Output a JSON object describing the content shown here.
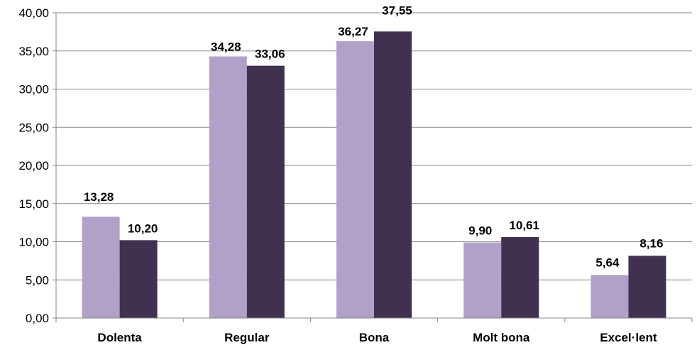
{
  "chart_data": {
    "type": "bar",
    "categories": [
      "Dolenta",
      "Regular",
      "Bona",
      "Molt bona",
      "Excel·lent"
    ],
    "series": [
      {
        "values": [
          13.28,
          34.28,
          36.27,
          9.9,
          5.64
        ],
        "value_labels": [
          "13,28",
          "34,28",
          "36,27",
          "9,90",
          "5,64"
        ],
        "color": "#b1a0c7"
      },
      {
        "values": [
          10.2,
          33.06,
          37.55,
          10.61,
          8.16
        ],
        "value_labels": [
          "10,20",
          "33,06",
          "37,55",
          "10,61",
          "8,16"
        ],
        "color": "#403151"
      }
    ],
    "ylim": [
      0,
      40
    ],
    "yticks": [
      0,
      5,
      10,
      15,
      20,
      25,
      30,
      35,
      40
    ],
    "ytick_labels": [
      "0,00",
      "5,00",
      "10,00",
      "15,00",
      "20,00",
      "25,00",
      "30,00",
      "35,00",
      "40,00"
    ],
    "grid": true,
    "grid_color": "#878787",
    "axis_color": "#878787",
    "legend": false
  }
}
